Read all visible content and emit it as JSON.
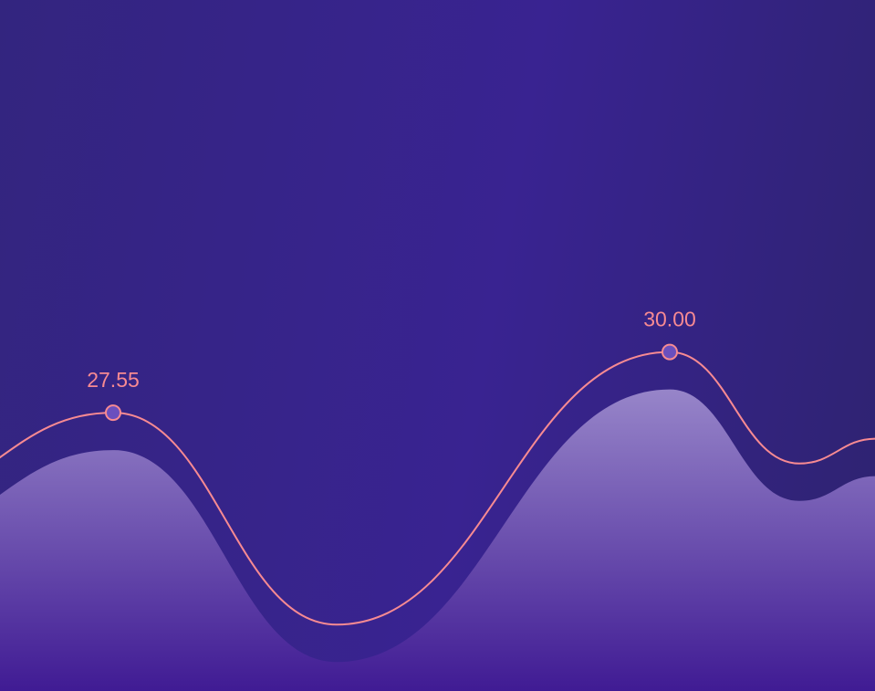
{
  "colors": {
    "background_start": "#33257f",
    "background_end": "#2e2370",
    "line": "#f78a92",
    "marker_fill": "#6a4fbe",
    "area_top": "#9785c9",
    "area_bottom": "#3f1a93"
  },
  "chart_data": {
    "type": "area",
    "title": "",
    "xlabel": "",
    "ylabel": "",
    "grid": false,
    "legend": "none",
    "series": [
      {
        "values": [
          24.0,
          27.55,
          19.0,
          30.0,
          25.5,
          26.5
        ],
        "markers": [
          {
            "index": 1,
            "label": "27.55"
          },
          {
            "index": 3,
            "label": "30.00"
          }
        ]
      }
    ]
  }
}
